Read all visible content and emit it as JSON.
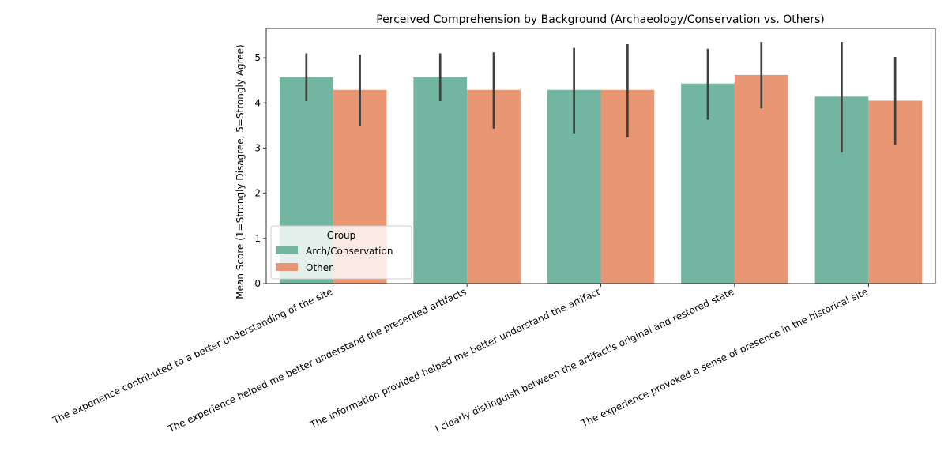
{
  "chart_data": {
    "type": "bar",
    "title": "Perceived Comprehension by Background (Archaeology/Conservation vs. Others)",
    "xlabel": "",
    "ylabel": "Mean Score (1=Strongly Disagree, 5=Strongly Agree)",
    "ylim": [
      0,
      5.65
    ],
    "yticks": [
      "0",
      "1",
      "2",
      "3",
      "4",
      "5"
    ],
    "grid": false,
    "legend_title": "Group",
    "legend_position": "lower-left",
    "categories": [
      "The experience contributed to a better understanding of the site",
      "The experience helped me better understand the presented artifacts",
      "The information provided helped me better understand the artifact",
      "I clearly distinguish between the artifact's original and restored state",
      "The experience provoked a sense of presence in the historical site"
    ],
    "series": [
      {
        "name": "Arch/Conservation",
        "color": "#72b6a1",
        "values": [
          4.57,
          4.57,
          4.29,
          4.43,
          4.14
        ],
        "ci_low": [
          4.04,
          4.04,
          3.33,
          3.63,
          2.9
        ],
        "ci_high": [
          5.1,
          5.1,
          5.22,
          5.2,
          5.35
        ]
      },
      {
        "name": "Other",
        "color": "#e99675",
        "values": [
          4.29,
          4.29,
          4.29,
          4.62,
          4.05
        ],
        "ci_low": [
          3.48,
          3.43,
          3.24,
          3.88,
          3.07
        ],
        "ci_high": [
          5.07,
          5.12,
          5.3,
          5.35,
          5.02
        ]
      }
    ],
    "error_bar_color": "#404040"
  }
}
